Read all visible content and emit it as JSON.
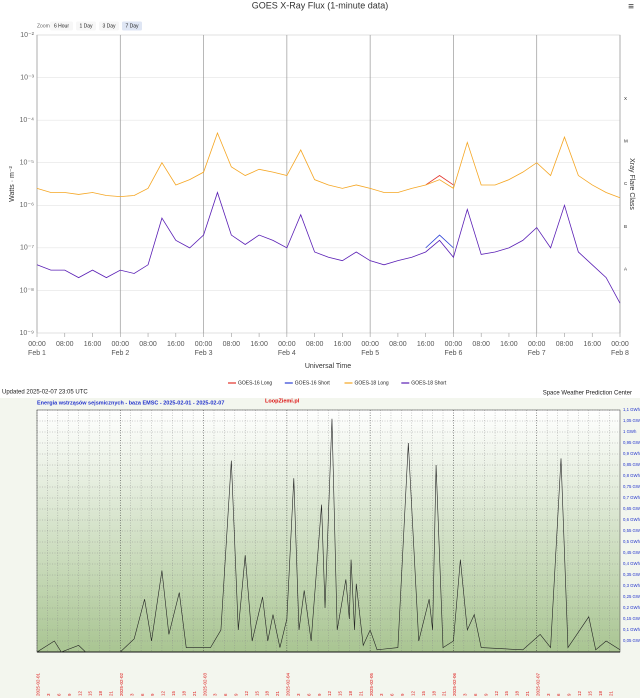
{
  "chart_data": [
    {
      "type": "line",
      "title": "GOES X-Ray Flux (1-minute data)",
      "menu": "≡",
      "zoom": {
        "label": "Zoom",
        "options": [
          "6 Hour",
          "1 Day",
          "3 Day",
          "7 Day"
        ],
        "selected": 3
      },
      "ylabel": "Watts · m⁻²",
      "xlabel": "Universal Time",
      "y2label": "Xray Flare Class",
      "log_y": true,
      "grid": true,
      "xlim": [
        0,
        168
      ],
      "ylim": [
        1e-09,
        0.01
      ],
      "yticks": [
        {
          "value": 1e-09,
          "label": "10⁻⁹"
        },
        {
          "value": 1e-08,
          "label": "10⁻⁸"
        },
        {
          "value": 1e-07,
          "label": "10⁻⁷"
        },
        {
          "value": 1e-06,
          "label": "10⁻⁶"
        },
        {
          "value": 1e-05,
          "label": "10⁻⁵"
        },
        {
          "value": 0.0001,
          "label": "10⁻⁴"
        },
        {
          "value": 0.001,
          "label": "10⁻³"
        },
        {
          "value": 0.01,
          "label": "10⁻²"
        }
      ],
      "flare_classes": [
        {
          "value": 1e-08,
          "label": "A"
        },
        {
          "value": 1e-07,
          "label": "B"
        },
        {
          "value": 1e-06,
          "label": "C"
        },
        {
          "value": 1e-05,
          "label": "M"
        },
        {
          "value": 0.0001,
          "label": "X"
        }
      ],
      "xticks": [
        {
          "value": 0,
          "label": "00:00"
        },
        {
          "value": 8,
          "label": "08:00"
        },
        {
          "value": 16,
          "label": "16:00"
        },
        {
          "value": 24,
          "label": "00:00"
        },
        {
          "value": 32,
          "label": "08:00"
        },
        {
          "value": 40,
          "label": "16:00"
        },
        {
          "value": 48,
          "label": "00:00"
        },
        {
          "value": 56,
          "label": "08:00"
        },
        {
          "value": 64,
          "label": "16:00"
        },
        {
          "value": 72,
          "label": "00:00"
        },
        {
          "value": 80,
          "label": "08:00"
        },
        {
          "value": 88,
          "label": "16:00"
        },
        {
          "value": 96,
          "label": "00:00"
        },
        {
          "value": 104,
          "label": "08:00"
        },
        {
          "value": 112,
          "label": "16:00"
        },
        {
          "value": 120,
          "label": "00:00"
        },
        {
          "value": 128,
          "label": "08:00"
        },
        {
          "value": 136,
          "label": "16:00"
        },
        {
          "value": 144,
          "label": "00:00"
        },
        {
          "value": 152,
          "label": "08:00"
        },
        {
          "value": 160,
          "label": "16:00"
        },
        {
          "value": 168,
          "label": "00:00"
        }
      ],
      "day_labels": [
        {
          "value": 0,
          "label": "Feb 1"
        },
        {
          "value": 24,
          "label": "Feb 2"
        },
        {
          "value": 48,
          "label": "Feb 3"
        },
        {
          "value": 72,
          "label": "Feb 4"
        },
        {
          "value": 96,
          "label": "Feb 5"
        },
        {
          "value": 120,
          "label": "Feb 6"
        },
        {
          "value": 144,
          "label": "Feb 7"
        },
        {
          "value": 168,
          "label": "Feb 8"
        }
      ],
      "x": [
        0,
        4,
        8,
        12,
        16,
        20,
        24,
        28,
        32,
        36,
        40,
        44,
        48,
        52,
        56,
        60,
        64,
        68,
        72,
        76,
        80,
        84,
        88,
        92,
        96,
        100,
        104,
        108,
        112,
        116,
        120,
        124,
        128,
        132,
        136,
        140,
        144,
        148,
        152,
        156,
        160,
        164,
        168
      ],
      "series": [
        {
          "name": "GOES-16 Long",
          "color": "#e2332a",
          "x": [
            112,
            116,
            120
          ],
          "values": [
            3e-06,
            5e-06,
            3e-06
          ]
        },
        {
          "name": "GOES-16 Short",
          "color": "#2b3fd6",
          "x": [
            112,
            116,
            120
          ],
          "values": [
            1e-07,
            2e-07,
            1e-07
          ]
        },
        {
          "name": "GOES-18 Long",
          "color": "#f5a623",
          "values": [
            2.5e-06,
            2e-06,
            2e-06,
            1.8e-06,
            2e-06,
            1.7e-06,
            1.6e-06,
            1.7e-06,
            2.5e-06,
            1e-05,
            3e-06,
            4e-06,
            6e-06,
            5e-05,
            8e-06,
            5e-06,
            7e-06,
            6e-06,
            5e-06,
            2e-05,
            4e-06,
            3e-06,
            2.5e-06,
            3e-06,
            2.5e-06,
            2e-06,
            2e-06,
            2.5e-06,
            3e-06,
            4e-06,
            2.5e-06,
            3e-05,
            3e-06,
            3e-06,
            4e-06,
            6e-06,
            1e-05,
            5e-06,
            4e-05,
            5e-06,
            3e-06,
            2e-06,
            1.5e-06
          ]
        },
        {
          "name": "GOES-18 Short",
          "color": "#5a1fb5",
          "values": [
            4e-08,
            3e-08,
            3e-08,
            2e-08,
            3e-08,
            2e-08,
            3e-08,
            2.5e-08,
            4e-08,
            5e-07,
            1.5e-07,
            1e-07,
            2e-07,
            2e-06,
            2e-07,
            1.2e-07,
            2e-07,
            1.5e-07,
            1e-07,
            6e-07,
            8e-08,
            6e-08,
            5e-08,
            8e-08,
            5e-08,
            4e-08,
            5e-08,
            6e-08,
            8e-08,
            1.5e-07,
            6e-08,
            8e-07,
            7e-08,
            8e-08,
            1e-07,
            1.5e-07,
            3e-07,
            1e-07,
            1e-06,
            8e-08,
            4e-08,
            2e-08,
            5e-09
          ]
        }
      ],
      "updated": "Updated 2025-02-07 23:05 UTC",
      "credit": "Space Weather Prediction Center"
    },
    {
      "type": "line",
      "title": "Energia wstrząsów sejsmicznych - baza EMSC - 2025-02-01 - 2025-02-07",
      "brand": "LoopZiemi.pl",
      "color": "#222222",
      "grid": true,
      "xlim": [
        0,
        168
      ],
      "ylim": [
        0,
        1.1
      ],
      "yticks": [
        {
          "value": 0.05,
          "label": "0,05 GWh"
        },
        {
          "value": 0.1,
          "label": "0,1 GWh"
        },
        {
          "value": 0.15,
          "label": "0,15 GWh"
        },
        {
          "value": 0.2,
          "label": "0,2 GWh"
        },
        {
          "value": 0.25,
          "label": "0,25 GWh"
        },
        {
          "value": 0.3,
          "label": "0,3 GWh"
        },
        {
          "value": 0.35,
          "label": "0,35 GWh"
        },
        {
          "value": 0.4,
          "label": "0,4 GWh"
        },
        {
          "value": 0.45,
          "label": "0,45 GWh"
        },
        {
          "value": 0.5,
          "label": "0,5 GWh"
        },
        {
          "value": 0.55,
          "label": "0,55 GWh"
        },
        {
          "value": 0.6,
          "label": "0,6 GWh"
        },
        {
          "value": 0.65,
          "label": "0,65 GWh"
        },
        {
          "value": 0.7,
          "label": "0,7 GWh"
        },
        {
          "value": 0.75,
          "label": "0,75 GWh"
        },
        {
          "value": 0.8,
          "label": "0,8 GWh"
        },
        {
          "value": 0.85,
          "label": "0,85 GWh"
        },
        {
          "value": 0.9,
          "label": "0,9 GWh"
        },
        {
          "value": 0.95,
          "label": "0,95 GWh"
        },
        {
          "value": 1,
          "label": "1 GWh"
        },
        {
          "value": 1.05,
          "label": "1,05 GWh"
        },
        {
          "value": 1.1,
          "label": "1,1 GWh"
        }
      ],
      "xticks": [
        {
          "value": 0,
          "label": "2025-02-01"
        },
        {
          "value": 3,
          "label": "3"
        },
        {
          "value": 6,
          "label": "6"
        },
        {
          "value": 9,
          "label": "9"
        },
        {
          "value": 12,
          "label": "12"
        },
        {
          "value": 15,
          "label": "15"
        },
        {
          "value": 18,
          "label": "18"
        },
        {
          "value": 21,
          "label": "21"
        },
        {
          "value": 24,
          "label": "2025-02-02"
        },
        {
          "value": 27,
          "label": "3"
        },
        {
          "value": 30,
          "label": "6"
        },
        {
          "value": 33,
          "label": "9"
        },
        {
          "value": 36,
          "label": "12"
        },
        {
          "value": 39,
          "label": "15"
        },
        {
          "value": 42,
          "label": "18"
        },
        {
          "value": 45,
          "label": "21"
        },
        {
          "value": 48,
          "label": "2025-02-03"
        },
        {
          "value": 51,
          "label": "3"
        },
        {
          "value": 54,
          "label": "6"
        },
        {
          "value": 57,
          "label": "9"
        },
        {
          "value": 60,
          "label": "12"
        },
        {
          "value": 63,
          "label": "15"
        },
        {
          "value": 66,
          "label": "18"
        },
        {
          "value": 69,
          "label": "21"
        },
        {
          "value": 72,
          "label": "2025-02-04"
        },
        {
          "value": 75,
          "label": "3"
        },
        {
          "value": 78,
          "label": "6"
        },
        {
          "value": 81,
          "label": "9"
        },
        {
          "value": 84,
          "label": "12"
        },
        {
          "value": 87,
          "label": "15"
        },
        {
          "value": 90,
          "label": "18"
        },
        {
          "value": 93,
          "label": "21"
        },
        {
          "value": 96,
          "label": "2025-02-05"
        },
        {
          "value": 99,
          "label": "3"
        },
        {
          "value": 102,
          "label": "6"
        },
        {
          "value": 105,
          "label": "9"
        },
        {
          "value": 108,
          "label": "12"
        },
        {
          "value": 111,
          "label": "15"
        },
        {
          "value": 114,
          "label": "18"
        },
        {
          "value": 117,
          "label": "21"
        },
        {
          "value": 120,
          "label": "2025-02-06"
        },
        {
          "value": 123,
          "label": "3"
        },
        {
          "value": 126,
          "label": "6"
        },
        {
          "value": 129,
          "label": "9"
        },
        {
          "value": 132,
          "label": "12"
        },
        {
          "value": 135,
          "label": "15"
        },
        {
          "value": 138,
          "label": "18"
        },
        {
          "value": 141,
          "label": "21"
        },
        {
          "value": 144,
          "label": "2025-02-07"
        },
        {
          "value": 147,
          "label": "3"
        },
        {
          "value": 150,
          "label": "6"
        },
        {
          "value": 153,
          "label": "9"
        },
        {
          "value": 156,
          "label": "12"
        },
        {
          "value": 159,
          "label": "15"
        },
        {
          "value": 162,
          "label": "18"
        },
        {
          "value": 165,
          "label": "21"
        }
      ],
      "x": [
        0,
        5,
        7,
        12,
        14,
        24,
        28,
        31,
        33,
        36,
        38,
        41,
        43,
        50,
        53,
        56,
        58,
        60,
        62,
        65,
        66.5,
        68,
        70,
        72,
        74,
        75.5,
        77,
        79,
        82,
        83,
        85,
        86.5,
        89,
        90,
        90.5,
        91.5,
        92,
        94,
        96,
        98,
        104,
        107,
        110,
        113,
        114,
        115,
        117,
        120,
        122,
        124,
        126,
        128,
        140,
        145,
        148,
        151,
        153,
        159,
        161,
        164,
        168
      ],
      "values": [
        0,
        0.05,
        0,
        0.03,
        0,
        0,
        0.06,
        0.24,
        0.05,
        0.37,
        0.08,
        0.27,
        0.02,
        0.02,
        0.1,
        0.87,
        0.1,
        0.44,
        0.05,
        0.25,
        0.05,
        0.17,
        0.02,
        0.15,
        0.79,
        0.1,
        0.28,
        0.05,
        0.67,
        0.2,
        1.06,
        0.1,
        0.33,
        0.15,
        0.42,
        0.1,
        0.31,
        0.03,
        0.1,
        0.01,
        0.02,
        0.95,
        0.05,
        0.24,
        0.1,
        0.85,
        0.02,
        0.05,
        0.42,
        0.1,
        0.17,
        0.02,
        0.01,
        0.08,
        0.02,
        0.88,
        0.02,
        0.16,
        0.01,
        0.05,
        0.01
      ]
    }
  ]
}
